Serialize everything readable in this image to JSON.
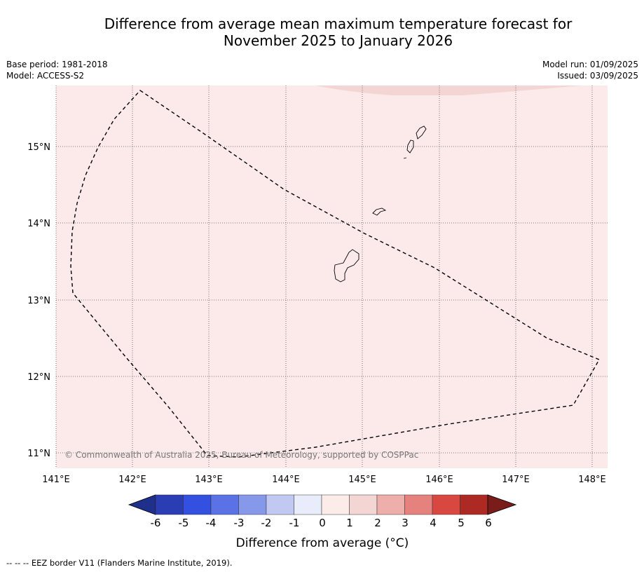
{
  "title_line1": "Difference from average mean maximum temperature forecast for",
  "title_line2": "November 2025 to January 2026",
  "base_period": "Base period: 1981-2018",
  "model": "Model: ACCESS-S2",
  "model_run": "Model run: 01/09/2025",
  "issued": "Issued: 03/09/2025",
  "copyright": "© Commonwealth of Australia 2025, Bureau of Meteorology, supported by COSPPac",
  "footer": "--  --  -- EEZ border V11 (Flanders Marine Institute, 2019).",
  "longitude_ticks": [
    "141°E",
    "142°E",
    "143°E",
    "144°E",
    "145°E",
    "146°E",
    "147°E",
    "148°E"
  ],
  "latitude_ticks": [
    "15°N",
    "14°N",
    "13°N",
    "12°N",
    "11°N"
  ],
  "colorbar": {
    "title": "Difference from average (°C)",
    "labels": [
      "-6",
      "-5",
      "-4",
      "-3",
      "-2",
      "-1",
      "0",
      "1",
      "2",
      "3",
      "4",
      "5",
      "6"
    ],
    "colors": [
      "#1f2f8c",
      "#2a3db5",
      "#3350e0",
      "#5a72e6",
      "#8698ea",
      "#c1c9f3",
      "#e8ecfb",
      "#fbecea",
      "#f3d6d3",
      "#eeaeaa",
      "#e6827d",
      "#d84840",
      "#ad2a24",
      "#7a1d1a"
    ]
  },
  "map": {
    "background_color": "#fbeae9",
    "north_patch_color": "#f3d6d3",
    "islands": [
      "Guam",
      "Rota",
      "Tinian",
      "Saipan"
    ]
  }
}
